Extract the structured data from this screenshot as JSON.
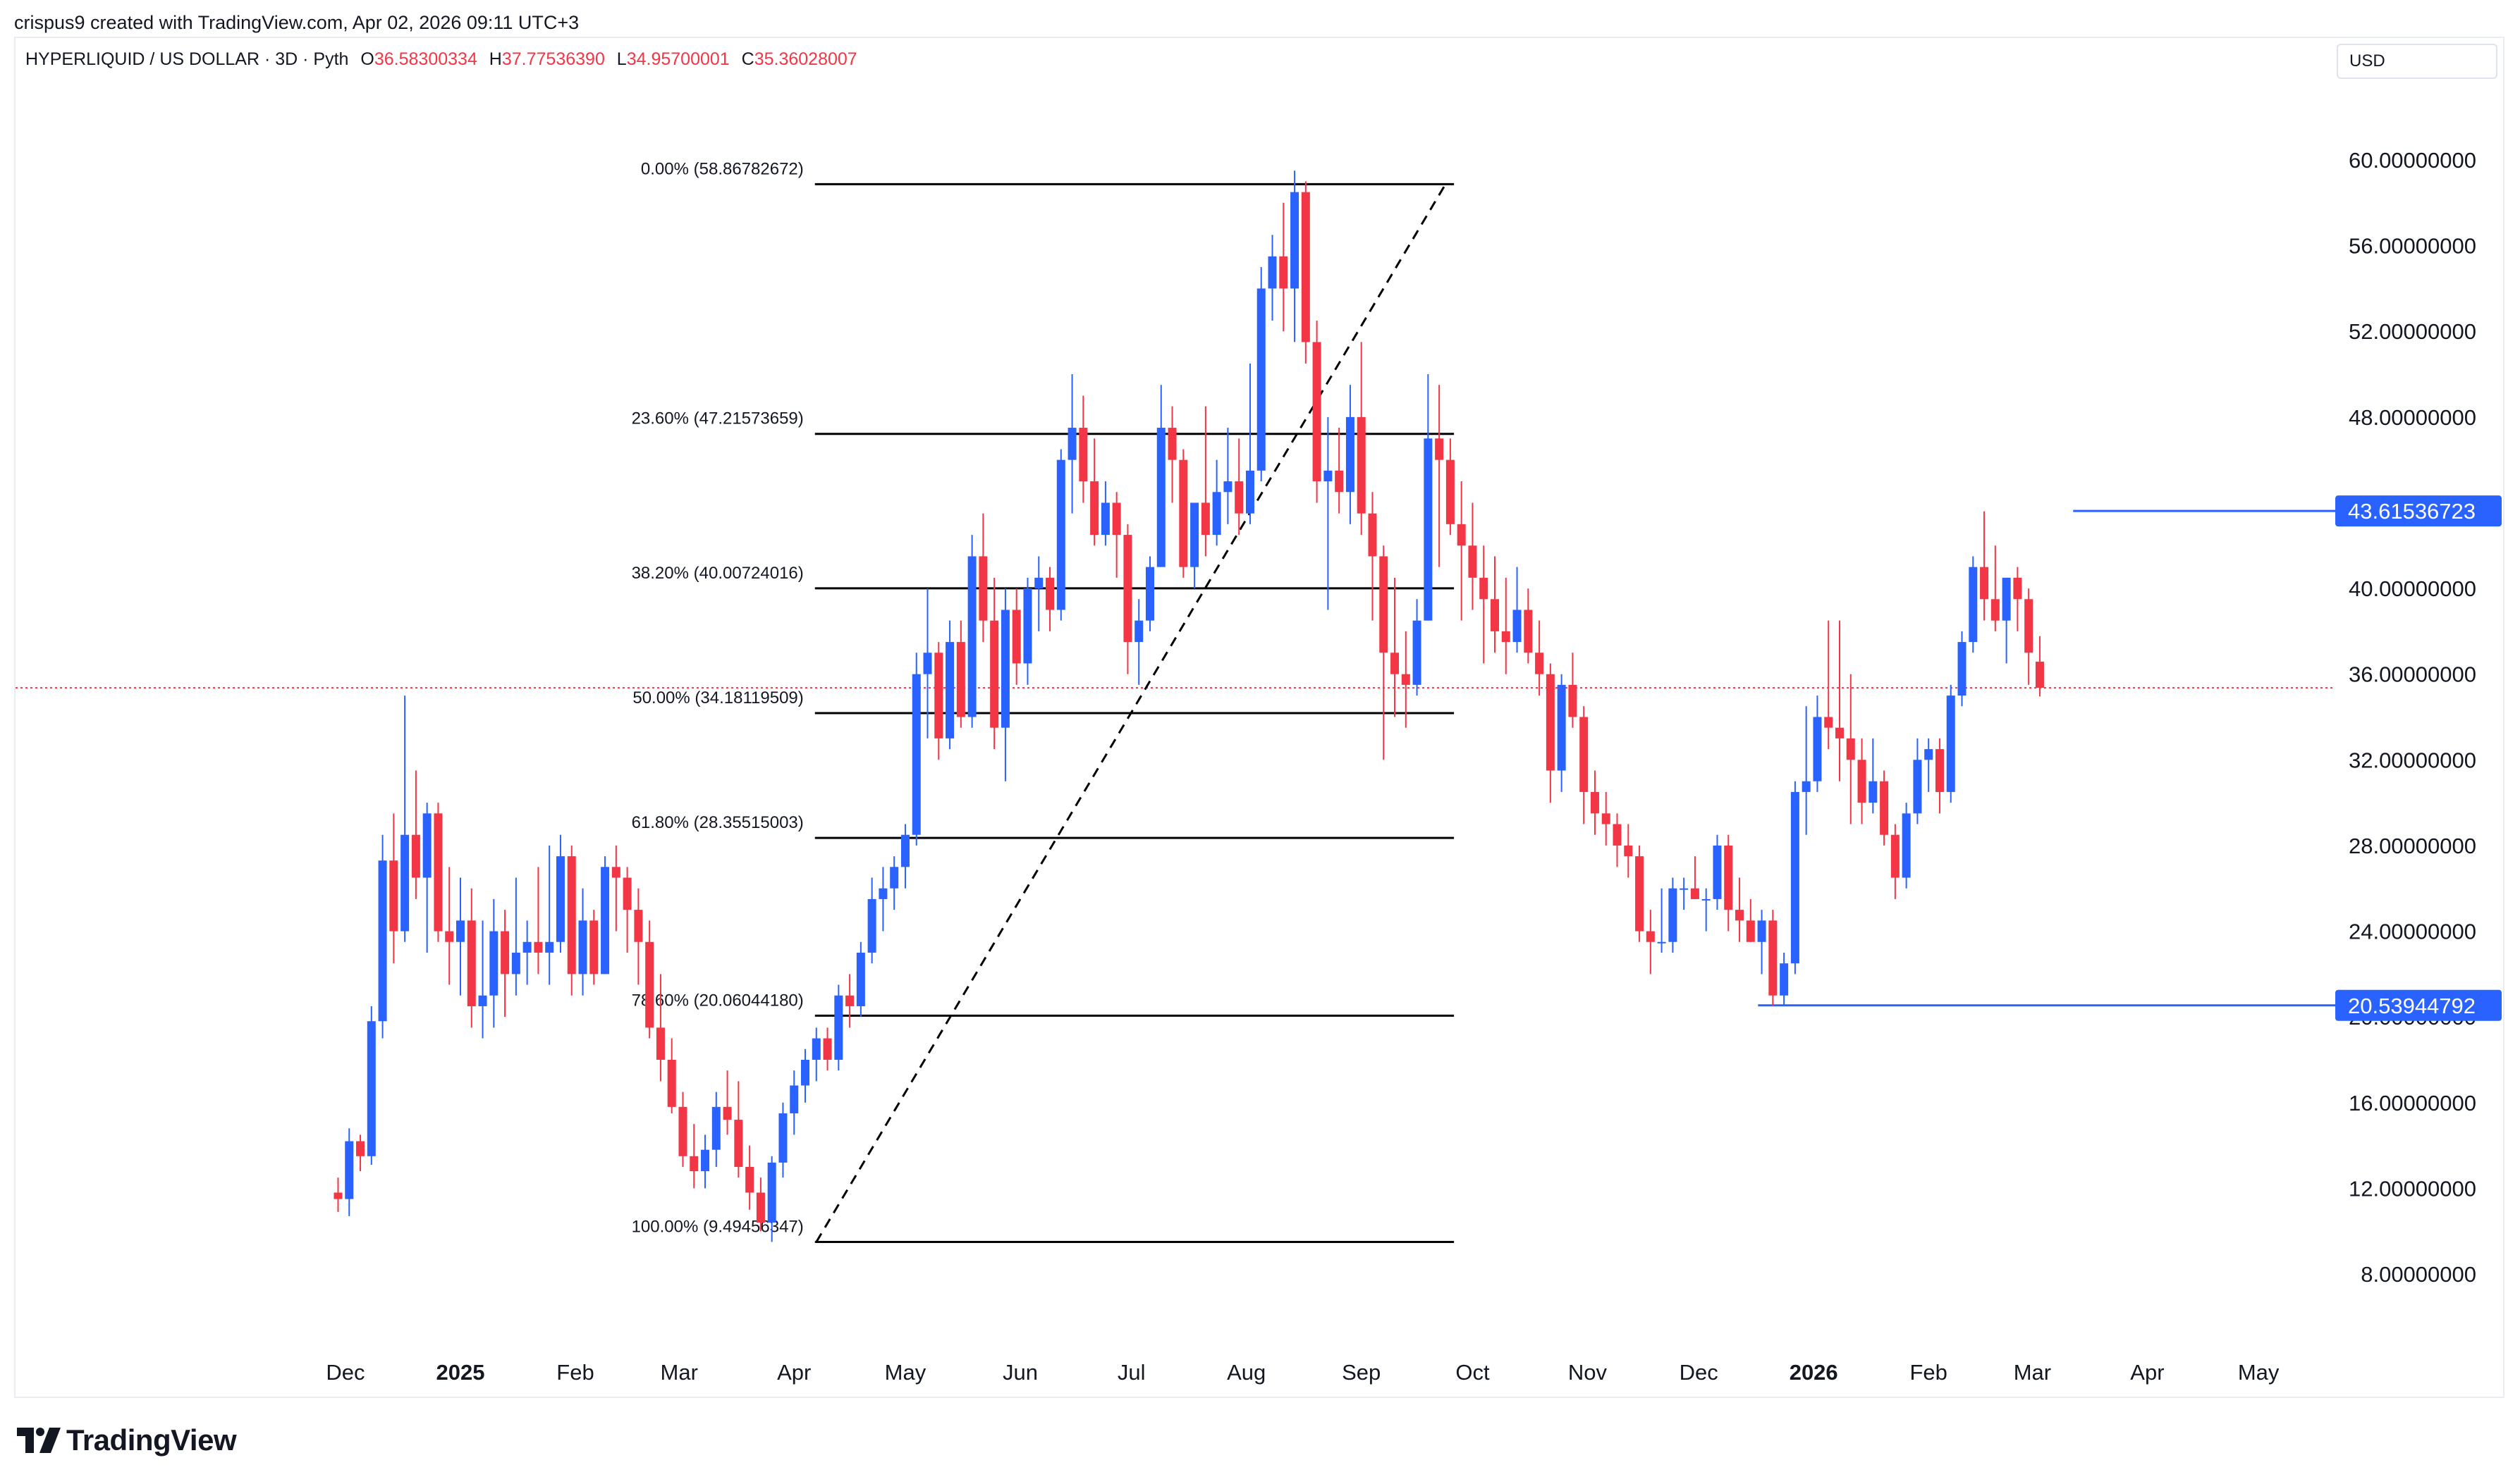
{
  "header": {
    "credit": "crispus9 created with TradingView.com, Apr 02, 2026 09:11 UTC+3",
    "symbol": "HYPERLIQUID / US DOLLAR · 3D · Pyth",
    "ohlc": {
      "o_label": "O",
      "o_value": "36.58300334",
      "h_label": "H",
      "h_value": "37.77536390",
      "l_label": "L",
      "l_value": "34.95700001",
      "c_label": "C",
      "c_value": "35.36028007"
    },
    "currency": "USD"
  },
  "brand": {
    "name": "TradingView"
  },
  "colors": {
    "up": "#2962ff",
    "down": "#f23645",
    "fib": "#000000",
    "level": "#2962ff",
    "price_line": "#f23645"
  },
  "chart_data": {
    "type": "candlestick",
    "y_axis": {
      "ticks": [
        8,
        12,
        16,
        20,
        24,
        28,
        32,
        36,
        40,
        44,
        48,
        52,
        56,
        60
      ],
      "tick_labels": [
        "8.00000000",
        "12.00000000",
        "16.00000000",
        "20.00000000",
        "24.00000000",
        "28.00000000",
        "32.00000000",
        "36.00000000",
        "40.00000000",
        "",
        "48.00000000",
        "52.00000000",
        "56.00000000",
        "60.00000000"
      ]
    },
    "x_axis": {
      "labels": [
        {
          "text": "Dec",
          "date": "2024-12-01",
          "bold": false
        },
        {
          "text": "2025",
          "date": "2025-01-01",
          "bold": true
        },
        {
          "text": "Feb",
          "date": "2025-02-01",
          "bold": false
        },
        {
          "text": "Mar",
          "date": "2025-03-01",
          "bold": false
        },
        {
          "text": "Apr",
          "date": "2025-04-01",
          "bold": false
        },
        {
          "text": "May",
          "date": "2025-05-01",
          "bold": false
        },
        {
          "text": "Jun",
          "date": "2025-06-01",
          "bold": false
        },
        {
          "text": "Jul",
          "date": "2025-07-01",
          "bold": false
        },
        {
          "text": "Aug",
          "date": "2025-08-01",
          "bold": false
        },
        {
          "text": "Sep",
          "date": "2025-09-01",
          "bold": false
        },
        {
          "text": "Oct",
          "date": "2025-10-01",
          "bold": false
        },
        {
          "text": "Nov",
          "date": "2025-11-01",
          "bold": false
        },
        {
          "text": "Dec",
          "date": "2025-12-01",
          "bold": false
        },
        {
          "text": "2026",
          "date": "2026-01-01",
          "bold": true
        },
        {
          "text": "Feb",
          "date": "2026-02-01",
          "bold": false
        },
        {
          "text": "Mar",
          "date": "2026-03-01",
          "bold": false
        },
        {
          "text": "Apr",
          "date": "2026-04-01",
          "bold": false
        },
        {
          "text": "May",
          "date": "2026-05-01",
          "bold": false
        }
      ]
    },
    "current_price": 35.36028007,
    "fibonacci": {
      "start": {
        "date": "2025-04-07",
        "price": 9.49456347
      },
      "end": {
        "date": "2025-09-18",
        "price": 58.86782672
      },
      "line_end_date": "2025-09-18",
      "levels": [
        {
          "label": "0.00% (58.86782672)",
          "price": 58.86782672
        },
        {
          "label": "23.60% (47.21573659)",
          "price": 47.21573659
        },
        {
          "label": "38.20% (40.00724016)",
          "price": 40.00724016
        },
        {
          "label": "50.00% (34.18119509)",
          "price": 34.18119509
        },
        {
          "label": "61.80% (28.35515003)",
          "price": 28.35515003
        },
        {
          "label": "78.60% (20.06044180)",
          "price": 20.0604418
        },
        {
          "label": "100.00% (9.49456347)",
          "price": 9.49456347
        }
      ]
    },
    "horizontal_levels": [
      {
        "label": "43.61536723",
        "price": 43.61536723,
        "from": "2026-03-12"
      },
      {
        "label": "20.53944792",
        "price": 20.53944792,
        "from": "2025-12-17"
      }
    ],
    "series": [
      {
        "name": "",
        "first_date": "2024-11-29",
        "interval_days": 3,
        "ohlc": [
          [
            11.8,
            12.5,
            10.9,
            11.5
          ],
          [
            11.5,
            14.8,
            10.7,
            14.2
          ],
          [
            14.2,
            14.5,
            12.8,
            13.5
          ],
          [
            13.5,
            20.5,
            13.1,
            19.8
          ],
          [
            19.8,
            28.5,
            19.0,
            27.3
          ],
          [
            27.3,
            29.5,
            22.5,
            24.0
          ],
          [
            24.0,
            35.0,
            23.5,
            28.5
          ],
          [
            28.5,
            31.5,
            25.5,
            26.5
          ],
          [
            26.5,
            30.0,
            23.0,
            29.5
          ],
          [
            29.5,
            30.0,
            23.5,
            24.0
          ],
          [
            24.0,
            27.0,
            21.5,
            23.5
          ],
          [
            23.5,
            26.5,
            21.0,
            24.5
          ],
          [
            24.5,
            26.0,
            19.5,
            20.5
          ],
          [
            20.5,
            24.5,
            19.0,
            21.0
          ],
          [
            21.0,
            25.5,
            19.5,
            24.0
          ],
          [
            24.0,
            25.0,
            20.0,
            22.0
          ],
          [
            22.0,
            26.5,
            21.0,
            23.0
          ],
          [
            23.0,
            24.5,
            21.5,
            23.5
          ],
          [
            23.5,
            27.0,
            22.0,
            23.0
          ],
          [
            23.0,
            28.0,
            21.5,
            23.5
          ],
          [
            23.5,
            28.5,
            23.0,
            27.5
          ],
          [
            27.5,
            28.0,
            21.0,
            22.0
          ],
          [
            22.0,
            26.0,
            21.0,
            24.5
          ],
          [
            24.5,
            25.0,
            21.5,
            22.0
          ],
          [
            22.0,
            27.5,
            22.0,
            27.0
          ],
          [
            27.0,
            28.0,
            24.0,
            26.5
          ],
          [
            26.5,
            27.0,
            23.0,
            25.0
          ],
          [
            25.0,
            26.0,
            21.5,
            23.5
          ],
          [
            23.5,
            24.5,
            19.0,
            19.5
          ],
          [
            19.5,
            22.0,
            17.0,
            18.0
          ],
          [
            18.0,
            19.0,
            15.5,
            15.8
          ],
          [
            15.8,
            16.5,
            13.0,
            13.5
          ],
          [
            13.5,
            15.0,
            12.0,
            12.8
          ],
          [
            12.8,
            14.5,
            12.0,
            13.8
          ],
          [
            13.8,
            16.5,
            13.0,
            15.8
          ],
          [
            15.8,
            17.5,
            14.5,
            15.2
          ],
          [
            15.2,
            17.0,
            12.5,
            13.0
          ],
          [
            13.0,
            14.0,
            11.0,
            11.8
          ],
          [
            11.8,
            12.5,
            10.0,
            10.4
          ],
          [
            10.4,
            13.5,
            9.5,
            13.2
          ],
          [
            13.2,
            16.0,
            12.5,
            15.5
          ],
          [
            15.5,
            17.5,
            14.5,
            16.8
          ],
          [
            16.8,
            18.5,
            16.0,
            18.0
          ],
          [
            18.0,
            19.5,
            17.0,
            19.0
          ],
          [
            19.0,
            19.5,
            17.5,
            18.0
          ],
          [
            18.0,
            21.5,
            17.5,
            21.0
          ],
          [
            21.0,
            22.0,
            19.5,
            20.5
          ],
          [
            20.5,
            23.5,
            20.0,
            23.0
          ],
          [
            23.0,
            26.5,
            22.5,
            25.5
          ],
          [
            25.5,
            27.0,
            24.0,
            26.0
          ],
          [
            26.0,
            27.5,
            25.0,
            27.0
          ],
          [
            27.0,
            29.0,
            26.0,
            28.5
          ],
          [
            28.5,
            37.0,
            28.0,
            36.0
          ],
          [
            36.0,
            40.0,
            33.0,
            37.0
          ],
          [
            37.0,
            37.5,
            32.0,
            33.0
          ],
          [
            33.0,
            38.5,
            32.5,
            37.5
          ],
          [
            37.5,
            38.5,
            33.5,
            34.0
          ],
          [
            34.0,
            42.5,
            33.5,
            41.5
          ],
          [
            41.5,
            43.5,
            37.5,
            38.5
          ],
          [
            38.5,
            40.5,
            32.5,
            33.5
          ],
          [
            33.5,
            40.0,
            31.0,
            39.0
          ],
          [
            39.0,
            40.0,
            35.5,
            36.5
          ],
          [
            36.5,
            40.5,
            35.5,
            40.0
          ],
          [
            40.0,
            41.5,
            38.0,
            40.5
          ],
          [
            40.5,
            41.0,
            38.0,
            39.0
          ],
          [
            39.0,
            46.5,
            38.5,
            46.0
          ],
          [
            46.0,
            50.0,
            43.5,
            47.5
          ],
          [
            47.5,
            49.0,
            44.0,
            45.0
          ],
          [
            45.0,
            47.0,
            42.0,
            42.5
          ],
          [
            42.5,
            45.0,
            42.0,
            44.0
          ],
          [
            44.0,
            44.5,
            40.5,
            42.5
          ],
          [
            42.5,
            43.0,
            36.0,
            37.5
          ],
          [
            37.5,
            39.5,
            35.5,
            38.5
          ],
          [
            38.5,
            41.5,
            38.0,
            41.0
          ],
          [
            41.0,
            49.5,
            41.0,
            47.5
          ],
          [
            47.5,
            48.5,
            44.0,
            46.0
          ],
          [
            46.0,
            46.5,
            40.5,
            41.0
          ],
          [
            41.0,
            44.0,
            40.0,
            44.0
          ],
          [
            44.0,
            48.5,
            41.5,
            42.5
          ],
          [
            42.5,
            46.0,
            42.0,
            44.5
          ],
          [
            44.5,
            47.5,
            43.0,
            45.0
          ],
          [
            45.0,
            47.0,
            42.5,
            43.5
          ],
          [
            43.5,
            50.5,
            43.0,
            45.5
          ],
          [
            45.5,
            55.0,
            45.0,
            54.0
          ],
          [
            54.0,
            56.5,
            52.5,
            55.5
          ],
          [
            55.5,
            58.0,
            52.0,
            54.0
          ],
          [
            54.0,
            59.5,
            51.5,
            58.5
          ],
          [
            58.5,
            59.0,
            50.5,
            51.5
          ],
          [
            51.5,
            52.5,
            44.0,
            45.0
          ],
          [
            45.0,
            48.0,
            39.0,
            45.5
          ],
          [
            45.5,
            47.5,
            43.5,
            44.5
          ],
          [
            44.5,
            49.5,
            43.0,
            48.0
          ],
          [
            48.0,
            51.5,
            42.5,
            43.5
          ],
          [
            43.5,
            44.5,
            38.5,
            41.5
          ],
          [
            41.5,
            42.0,
            32.0,
            37.0
          ],
          [
            37.0,
            40.5,
            34.0,
            36.0
          ],
          [
            36.0,
            38.0,
            33.5,
            35.5
          ],
          [
            35.5,
            39.5,
            35.0,
            38.5
          ],
          [
            38.5,
            50.0,
            38.5,
            47.0
          ],
          [
            47.0,
            49.5,
            41.0,
            46.0
          ],
          [
            46.0,
            47.0,
            42.5,
            43.0
          ],
          [
            43.0,
            45.0,
            38.5,
            42.0
          ],
          [
            42.0,
            44.0,
            39.0,
            40.5
          ],
          [
            40.5,
            42.0,
            36.5,
            39.5
          ],
          [
            39.5,
            41.5,
            37.0,
            38.0
          ],
          [
            38.0,
            40.5,
            36.0,
            37.5
          ],
          [
            37.5,
            41.0,
            37.0,
            39.0
          ],
          [
            39.0,
            40.0,
            36.5,
            37.0
          ],
          [
            37.0,
            38.5,
            35.0,
            36.0
          ],
          [
            36.0,
            36.5,
            30.0,
            31.5
          ],
          [
            31.5,
            36.0,
            30.5,
            35.5
          ],
          [
            35.5,
            37.0,
            33.5,
            34.0
          ],
          [
            34.0,
            34.5,
            29.0,
            30.5
          ],
          [
            30.5,
            31.5,
            28.5,
            29.5
          ],
          [
            29.5,
            30.5,
            28.0,
            29.0
          ],
          [
            29.0,
            29.5,
            27.0,
            28.0
          ],
          [
            28.0,
            29.0,
            26.5,
            27.5
          ],
          [
            27.5,
            28.0,
            23.5,
            24.0
          ],
          [
            24.0,
            25.0,
            22.0,
            23.5
          ],
          [
            23.5,
            26.0,
            23.0,
            23.5
          ],
          [
            23.5,
            26.5,
            23.0,
            26.0
          ],
          [
            26.0,
            26.5,
            25.0,
            26.0
          ],
          [
            26.0,
            27.5,
            25.5,
            25.5
          ],
          [
            25.5,
            26.0,
            24.0,
            25.5
          ],
          [
            25.5,
            28.5,
            25.0,
            28.0
          ],
          [
            28.0,
            28.5,
            24.0,
            25.0
          ],
          [
            25.0,
            26.5,
            23.5,
            24.5
          ],
          [
            24.5,
            25.5,
            23.5,
            23.5
          ],
          [
            23.5,
            25.0,
            22.0,
            24.5
          ],
          [
            24.5,
            25.0,
            20.5,
            21.0
          ],
          [
            21.0,
            23.0,
            20.5,
            22.5
          ],
          [
            22.5,
            31.0,
            22.0,
            30.5
          ],
          [
            30.5,
            34.5,
            28.5,
            31.0
          ],
          [
            31.0,
            35.0,
            30.5,
            34.0
          ],
          [
            34.0,
            38.5,
            32.5,
            33.5
          ],
          [
            33.5,
            38.5,
            31.0,
            33.0
          ],
          [
            33.0,
            36.0,
            29.0,
            32.0
          ],
          [
            32.0,
            33.0,
            29.0,
            30.0
          ],
          [
            30.0,
            33.0,
            29.5,
            31.0
          ],
          [
            31.0,
            31.5,
            28.0,
            28.5
          ],
          [
            28.5,
            29.0,
            25.5,
            26.5
          ],
          [
            26.5,
            30.0,
            26.0,
            29.5
          ],
          [
            29.5,
            33.0,
            29.0,
            32.0
          ],
          [
            32.0,
            33.0,
            30.5,
            32.5
          ],
          [
            32.5,
            33.0,
            29.5,
            30.5
          ],
          [
            30.5,
            35.5,
            30.0,
            35.0
          ],
          [
            35.0,
            38.0,
            34.5,
            37.5
          ],
          [
            37.5,
            41.5,
            37.0,
            41.0
          ],
          [
            41.0,
            43.6,
            38.5,
            39.5
          ],
          [
            39.5,
            42.0,
            38.0,
            38.5
          ],
          [
            38.5,
            40.5,
            36.5,
            40.5
          ],
          [
            40.5,
            41.0,
            38.0,
            39.5
          ],
          [
            39.5,
            40.0,
            35.5,
            37.0
          ],
          [
            36.58300334,
            37.7753639,
            34.95700001,
            35.36028007
          ]
        ]
      }
    ]
  }
}
